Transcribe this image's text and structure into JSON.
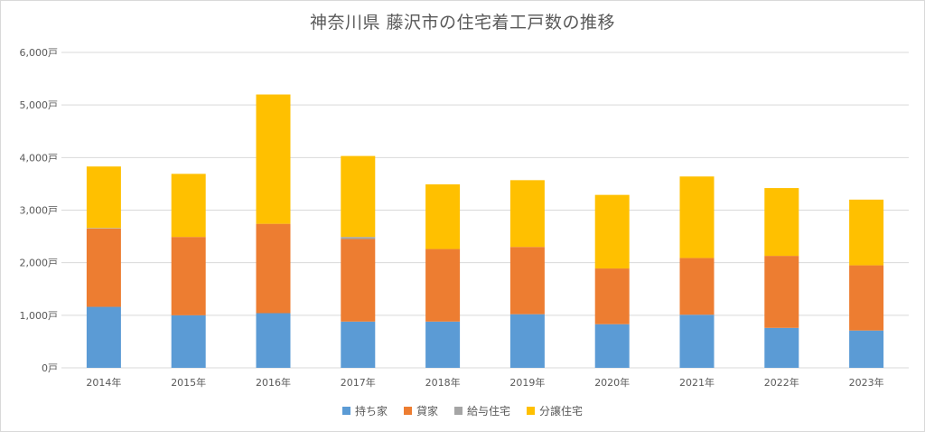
{
  "chart_data": {
    "type": "bar",
    "stacked": true,
    "title": "神奈川県 藤沢市の住宅着工戸数の推移",
    "xlabel": "",
    "ylabel": "",
    "ylim": [
      0,
      6000
    ],
    "y_ticks": [
      "0戸",
      "1,000戸",
      "2,000戸",
      "3,000戸",
      "4,000戸",
      "5,000戸",
      "6,000戸"
    ],
    "y_tick_values": [
      0,
      1000,
      2000,
      3000,
      4000,
      5000,
      6000
    ],
    "grid": true,
    "legend_position": "bottom",
    "categories": [
      "2014年",
      "2015年",
      "2016年",
      "2017年",
      "2018年",
      "2019年",
      "2020年",
      "2021年",
      "2022年",
      "2023年"
    ],
    "series": [
      {
        "name": "持ち家",
        "color": "#5b9bd5",
        "values": [
          1160,
          1000,
          1040,
          880,
          880,
          1020,
          830,
          1010,
          760,
          710
        ]
      },
      {
        "name": "貸家",
        "color": "#ed7d31",
        "values": [
          1490,
          1490,
          1700,
          1570,
          1380,
          1280,
          1060,
          1080,
          1370,
          1240
        ]
      },
      {
        "name": "給与住宅",
        "color": "#a5a5a5",
        "values": [
          10,
          0,
          0,
          40,
          0,
          0,
          0,
          0,
          0,
          0
        ]
      },
      {
        "name": "分譲住宅",
        "color": "#ffc000",
        "values": [
          1170,
          1200,
          2460,
          1540,
          1230,
          1270,
          1400,
          1550,
          1290,
          1250
        ]
      }
    ]
  }
}
